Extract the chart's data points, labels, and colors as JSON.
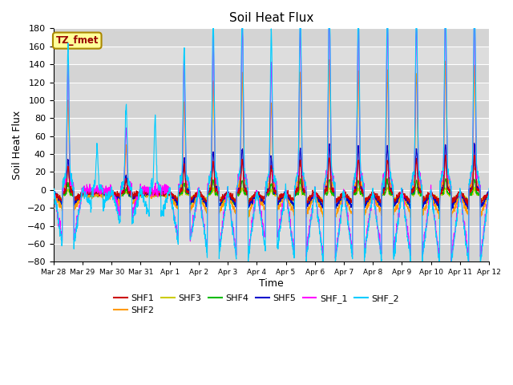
{
  "title": "Soil Heat Flux",
  "xlabel": "Time",
  "ylabel": "Soil Heat Flux",
  "ylim": [
    -80,
    180
  ],
  "yticks": [
    -80,
    -60,
    -40,
    -20,
    0,
    20,
    40,
    60,
    80,
    100,
    120,
    140,
    160,
    180
  ],
  "series_colors": {
    "SHF1": "#cc0000",
    "SHF2": "#ff9900",
    "SHF3": "#cccc00",
    "SHF4": "#00bb00",
    "SHF5": "#0000cc",
    "SHF_1": "#ff00ff",
    "SHF_2": "#00ccff"
  },
  "xtick_labels": [
    "Mar 28",
    "Mar 29",
    "Mar 30",
    "Mar 31",
    "Apr 1",
    "Apr 2",
    "Apr 3",
    "Apr 4",
    "Apr 5",
    "Apr 6",
    "Apr 7",
    "Apr 8",
    "Apr 9",
    "Apr 10",
    "Apr 11",
    "Apr 12"
  ],
  "annotation_text": "TZ_fmet",
  "annotation_bg": "#ffff99",
  "annotation_border": "#aa8800",
  "annotation_text_color": "#990000",
  "plot_bg_color": "#dddddd",
  "fig_bg_color": "#ffffff",
  "n_days": 15,
  "points_per_day": 144,
  "figsize": [
    6.4,
    4.8
  ],
  "dpi": 100
}
